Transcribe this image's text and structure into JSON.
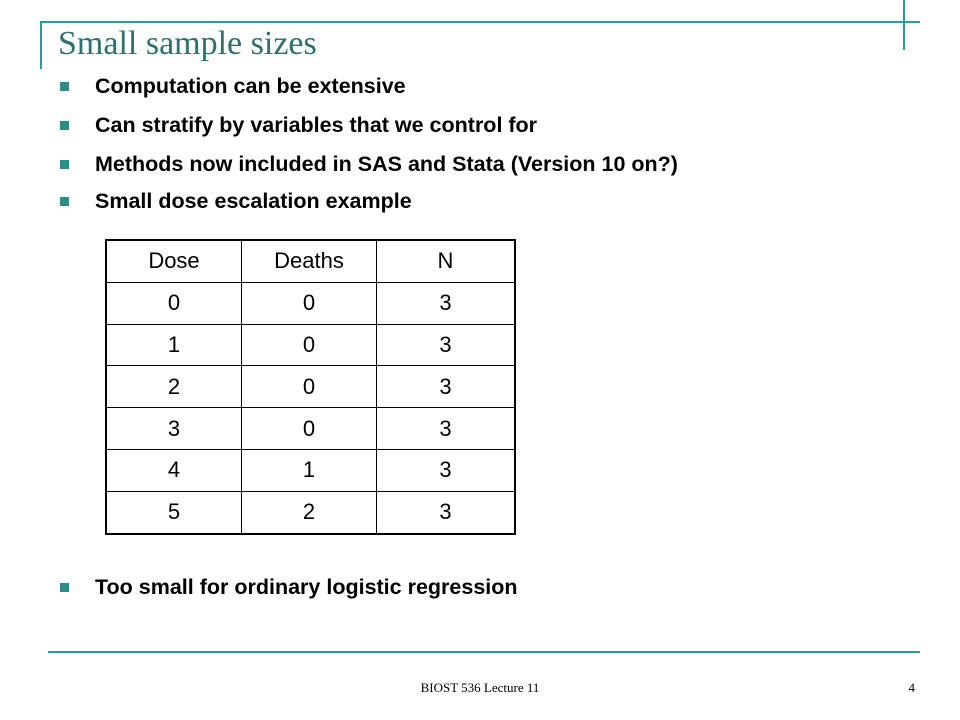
{
  "slide": {
    "title": "Small sample sizes",
    "bullets": [
      "Computation can be extensive",
      "Can stratify by variables that we control for",
      "Methods now included in SAS and Stata (Version 10 on?)",
      "Small dose escalation example"
    ],
    "closing_bullet": "Too small for ordinary logistic regression",
    "table": {
      "headers": [
        "Dose",
        "Deaths",
        "N"
      ],
      "rows": [
        [
          "0",
          "0",
          "3"
        ],
        [
          "1",
          "0",
          "3"
        ],
        [
          "2",
          "0",
          "3"
        ],
        [
          "3",
          "0",
          "3"
        ],
        [
          "4",
          "1",
          "3"
        ],
        [
          "5",
          "2",
          "3"
        ]
      ]
    },
    "footer": {
      "center_text": "BIOST 536 Lecture 11",
      "page_number": "4"
    }
  },
  "theme": {
    "accent_color": "#2e9a98",
    "title_color": "#2e6f70",
    "bullet_color": "#2e8b8a"
  }
}
